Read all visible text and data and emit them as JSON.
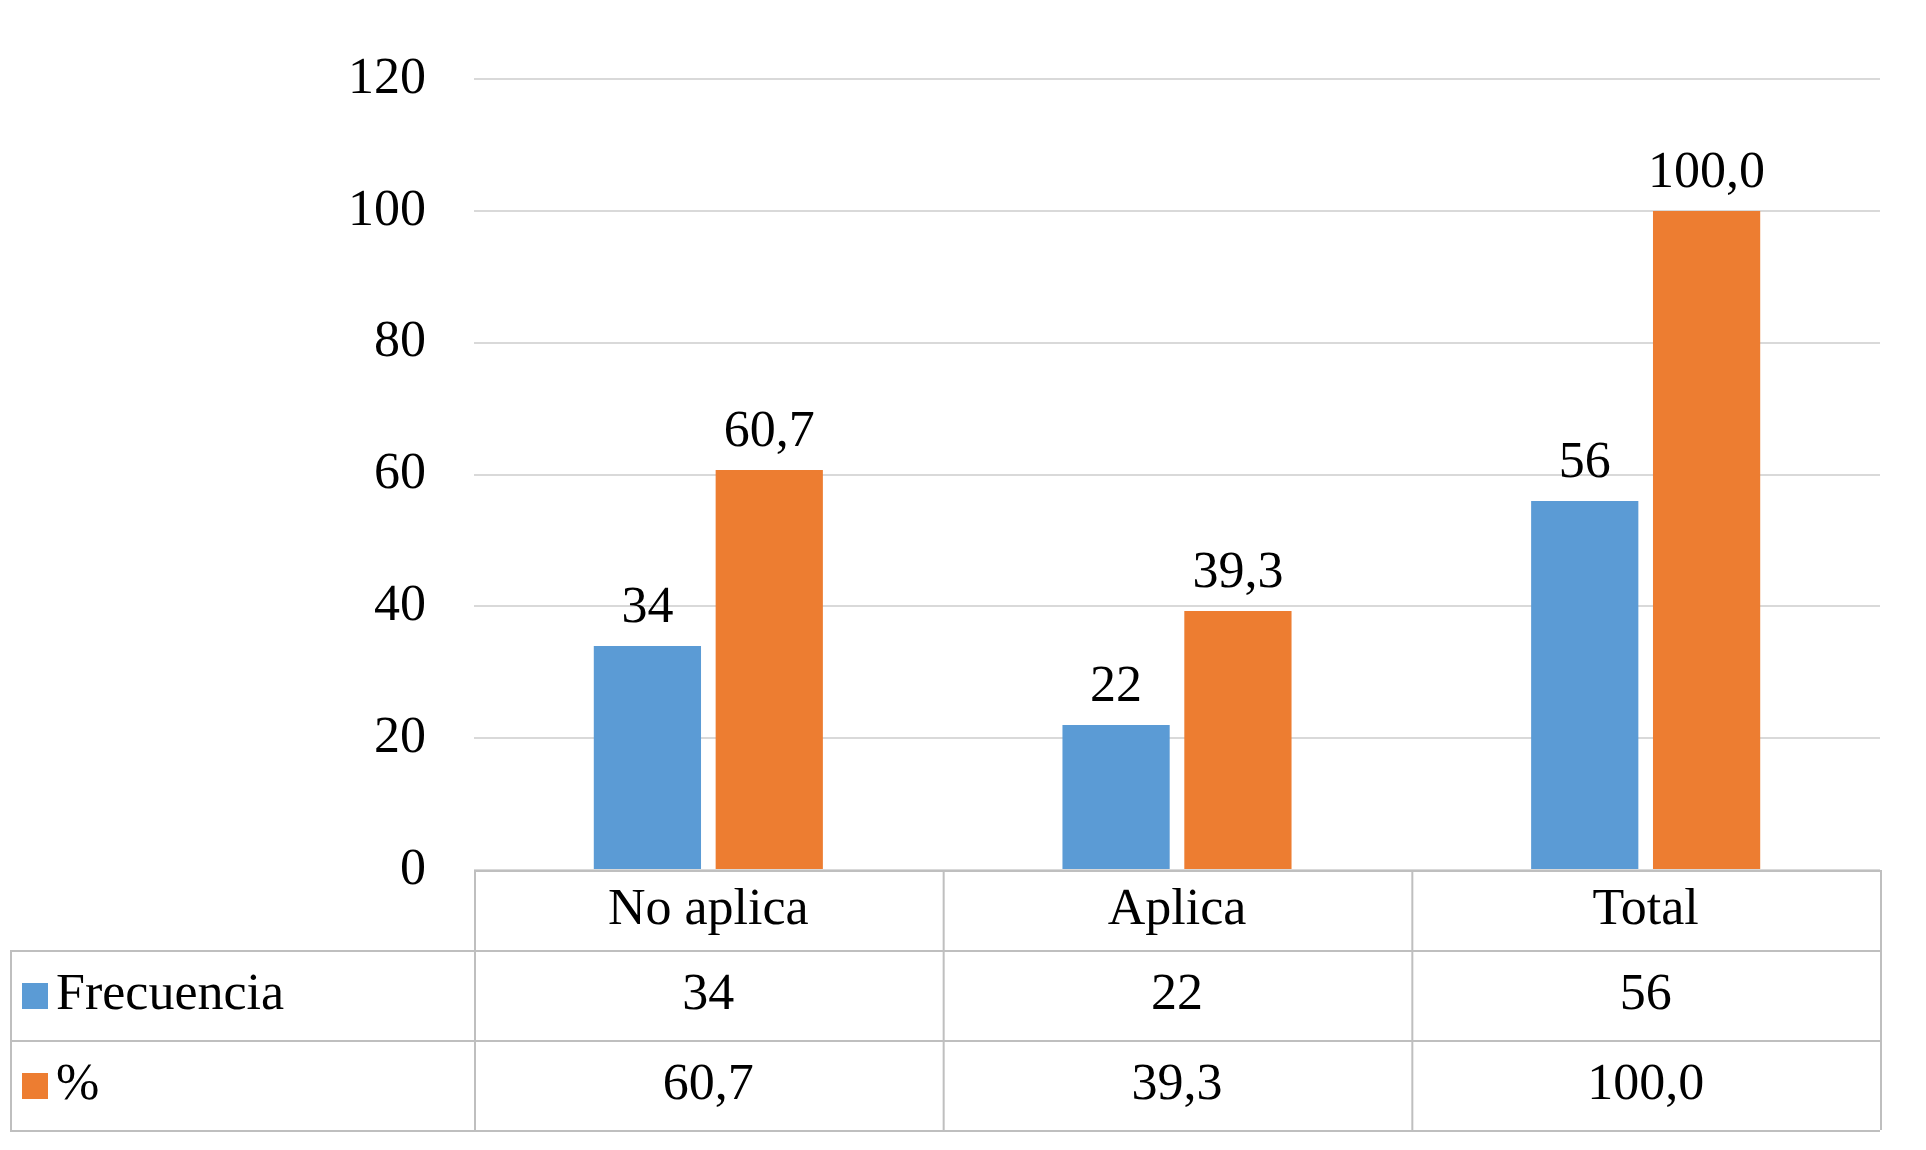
{
  "chart_data": {
    "type": "bar",
    "categories": [
      "No aplica",
      "Aplica",
      "Total"
    ],
    "series": [
      {
        "name": "Frecuencia",
        "color": "#5b9bd5",
        "values": [
          34,
          22,
          56
        ],
        "value_labels": [
          "34",
          "22",
          "56"
        ]
      },
      {
        "name": "%",
        "color": "#ed7d31",
        "values": [
          60.7,
          39.3,
          100
        ],
        "value_labels": [
          "60,7",
          "39,3",
          "100,0"
        ]
      }
    ],
    "ylim": [
      0,
      120
    ],
    "yticks": [
      0,
      20,
      40,
      60,
      80,
      100,
      120
    ],
    "grid": "y",
    "legend": "bottom"
  }
}
